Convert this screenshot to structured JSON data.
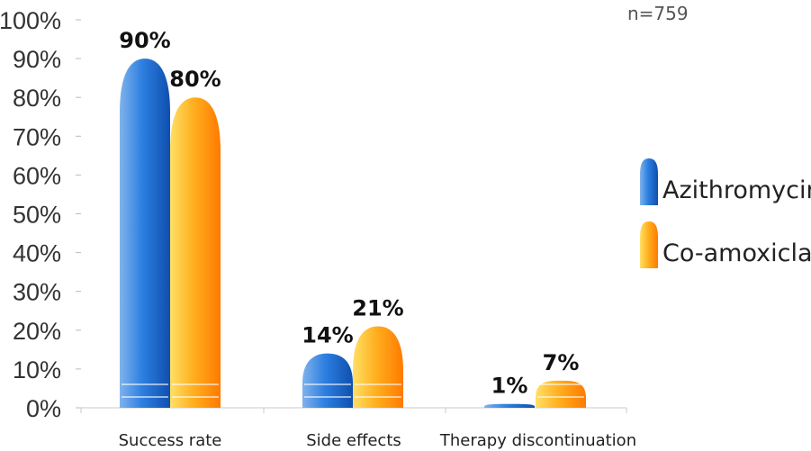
{
  "note": "n=759",
  "colors": {
    "azithromycin": "#1f6fd0",
    "co_amoxiclav": "#ff8c00"
  },
  "chart_data": {
    "type": "bar",
    "categories": [
      "Success rate",
      "Side effects",
      "Therapy discontinuation"
    ],
    "series": [
      {
        "name": "Azithromycin",
        "values": [
          90,
          14,
          1
        ],
        "labels": [
          "90%",
          "14%",
          "1%"
        ]
      },
      {
        "name": "Co-amoxiclav",
        "values": [
          80,
          21,
          7
        ],
        "labels": [
          "80%",
          "21%",
          "7%"
        ]
      }
    ],
    "ylim": [
      0,
      100
    ],
    "yticks": [
      "0%",
      "10%",
      "20%",
      "30%",
      "40%",
      "50%",
      "60%",
      "70%",
      "80%",
      "90%",
      "100%"
    ],
    "legend": "right",
    "grid": false
  }
}
